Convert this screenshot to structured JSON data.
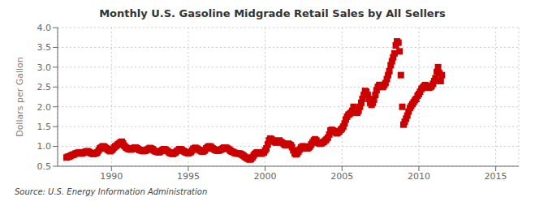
{
  "chart_data": {
    "type": "scatter",
    "title": "Monthly U.S. Gasoline Midgrade Retail Sales by All Sellers",
    "ylabel": "Dollars per Gallon",
    "annotation": "Source: U.S. Energy Information Administration",
    "color": "#cc0000",
    "marker": "square",
    "grid": true,
    "xlim": [
      1986.5,
      2016.5
    ],
    "xticks": [
      1990,
      1995,
      2000,
      2005,
      2010,
      2015
    ],
    "ylim": [
      0.5,
      4.0
    ],
    "yticks": [
      0.5,
      {
        "value": 1.0,
        "label": "1.0"
      },
      1.5,
      {
        "value": 2.0,
        "label": "2.0"
      },
      2.5,
      {
        "value": 3.0,
        "label": "3.0"
      },
      3.5,
      {
        "value": 4.0,
        "label": "4.0"
      }
    ],
    "x": [
      1987.08,
      1987.17,
      1987.25,
      1987.33,
      1987.42,
      1987.5,
      1987.58,
      1987.67,
      1987.75,
      1987.83,
      1987.92,
      1988.0,
      1988.08,
      1988.17,
      1988.25,
      1988.33,
      1988.42,
      1988.5,
      1988.58,
      1988.67,
      1988.75,
      1988.83,
      1988.92,
      1989.0,
      1989.08,
      1989.17,
      1989.25,
      1989.33,
      1989.42,
      1989.5,
      1989.58,
      1989.67,
      1989.75,
      1989.83,
      1989.92,
      1990.0,
      1990.08,
      1990.17,
      1990.25,
      1990.33,
      1990.42,
      1990.5,
      1990.58,
      1990.67,
      1990.75,
      1990.83,
      1990.92,
      1991.0,
      1991.08,
      1991.17,
      1991.25,
      1991.33,
      1991.42,
      1991.5,
      1991.58,
      1991.67,
      1991.75,
      1991.83,
      1991.92,
      1992.0,
      1992.08,
      1992.17,
      1992.25,
      1992.33,
      1992.42,
      1992.5,
      1992.58,
      1992.67,
      1992.75,
      1992.83,
      1992.92,
      1993.0,
      1993.08,
      1993.17,
      1993.25,
      1993.33,
      1993.42,
      1993.5,
      1993.58,
      1993.67,
      1993.75,
      1993.83,
      1993.92,
      1994.0,
      1994.08,
      1994.17,
      1994.25,
      1994.33,
      1994.42,
      1994.5,
      1994.58,
      1994.67,
      1994.75,
      1994.83,
      1994.92,
      1995.0,
      1995.08,
      1995.17,
      1995.25,
      1995.33,
      1995.42,
      1995.5,
      1995.58,
      1995.67,
      1995.75,
      1995.83,
      1995.92,
      1996.0,
      1996.08,
      1996.17,
      1996.25,
      1996.33,
      1996.42,
      1996.5,
      1996.58,
      1996.67,
      1996.75,
      1996.83,
      1996.92,
      1997.0,
      1997.08,
      1997.17,
      1997.25,
      1997.33,
      1997.42,
      1997.5,
      1997.58,
      1997.67,
      1997.75,
      1997.83,
      1997.92,
      1998.0,
      1998.08,
      1998.17,
      1998.25,
      1998.33,
      1998.42,
      1998.5,
      1998.58,
      1998.67,
      1998.75,
      1998.83,
      1998.92,
      1999.0,
      1999.08,
      1999.17,
      1999.25,
      1999.33,
      1999.42,
      1999.5,
      1999.58,
      1999.67,
      1999.75,
      1999.83,
      1999.92,
      2000.0,
      2000.08,
      2000.17,
      2000.25,
      2000.33,
      2000.42,
      2000.5,
      2000.58,
      2000.67,
      2000.75,
      2000.83,
      2000.92,
      2001.0,
      2001.08,
      2001.17,
      2001.25,
      2001.33,
      2001.42,
      2001.5,
      2001.58,
      2001.67,
      2001.75,
      2001.83,
      2001.92,
      2002.0,
      2002.08,
      2002.17,
      2002.25,
      2002.33,
      2002.42,
      2002.5,
      2002.58,
      2002.67,
      2002.75,
      2002.83,
      2002.92,
      2003.0,
      2003.08,
      2003.17,
      2003.25,
      2003.33,
      2003.42,
      2003.5,
      2003.58,
      2003.67,
      2003.75,
      2003.83,
      2003.92,
      2004.0,
      2004.08,
      2004.17,
      2004.25,
      2004.33,
      2004.42,
      2004.5,
      2004.58,
      2004.67,
      2004.75,
      2004.83,
      2004.92,
      2005.0,
      2005.08,
      2005.17,
      2005.25,
      2005.33,
      2005.42,
      2005.5,
      2005.58,
      2005.67,
      2005.75,
      2005.83,
      2005.92,
      2006.0,
      2006.08,
      2006.17,
      2006.25,
      2006.33,
      2006.42,
      2006.5,
      2006.58,
      2006.67,
      2006.75,
      2006.83,
      2006.92,
      2007.0,
      2007.08,
      2007.17,
      2007.25,
      2007.33,
      2007.42,
      2007.5,
      2007.58,
      2007.67,
      2007.75,
      2007.83,
      2007.92,
      2008.0,
      2008.08,
      2008.17,
      2008.25,
      2008.33,
      2008.42,
      2008.5,
      2008.58,
      2008.67,
      2008.75,
      2008.83,
      2008.92,
      2009.0,
      2009.08,
      2009.17,
      2009.25,
      2009.33,
      2009.42,
      2009.5,
      2009.58,
      2009.67,
      2009.75,
      2009.83,
      2009.92,
      2010.0,
      2010.08,
      2010.17,
      2010.25,
      2010.33,
      2010.42,
      2010.5,
      2010.58,
      2010.67,
      2010.75,
      2010.83,
      2010.92,
      2011.0,
      2011.08,
      2011.17,
      2011.25,
      2011.33,
      2011.42,
      2011.5
    ],
    "values": [
      0.72,
      0.74,
      0.74,
      0.76,
      0.78,
      0.79,
      0.8,
      0.82,
      0.83,
      0.84,
      0.85,
      0.83,
      0.82,
      0.84,
      0.85,
      0.87,
      0.88,
      0.87,
      0.85,
      0.83,
      0.82,
      0.81,
      0.82,
      0.83,
      0.85,
      0.9,
      0.95,
      0.97,
      1.0,
      1.0,
      0.98,
      0.95,
      0.92,
      0.9,
      0.88,
      0.9,
      0.93,
      0.97,
      1.0,
      1.02,
      1.05,
      1.07,
      1.1,
      1.12,
      1.08,
      1.02,
      0.98,
      0.96,
      0.94,
      0.93,
      0.92,
      0.93,
      0.95,
      0.97,
      0.97,
      0.95,
      0.93,
      0.91,
      0.9,
      0.89,
      0.88,
      0.89,
      0.9,
      0.92,
      0.94,
      0.96,
      0.95,
      0.93,
      0.9,
      0.88,
      0.87,
      0.86,
      0.85,
      0.87,
      0.89,
      0.91,
      0.93,
      0.92,
      0.9,
      0.88,
      0.85,
      0.83,
      0.82,
      0.81,
      0.83,
      0.85,
      0.88,
      0.9,
      0.93,
      0.93,
      0.91,
      0.89,
      0.87,
      0.85,
      0.84,
      0.83,
      0.84,
      0.86,
      0.9,
      0.94,
      0.96,
      0.96,
      0.94,
      0.92,
      0.9,
      0.88,
      0.87,
      0.88,
      0.9,
      0.95,
      0.98,
      1.0,
      1.0,
      0.98,
      0.95,
      0.93,
      0.91,
      0.9,
      0.89,
      0.9,
      0.91,
      0.93,
      0.95,
      0.97,
      0.97,
      0.96,
      0.94,
      0.92,
      0.89,
      0.87,
      0.86,
      0.84,
      0.83,
      0.82,
      0.82,
      0.82,
      0.81,
      0.79,
      0.77,
      0.74,
      0.72,
      0.7,
      0.68,
      0.67,
      0.68,
      0.72,
      0.77,
      0.81,
      0.84,
      0.85,
      0.83,
      0.82,
      0.82,
      0.83,
      0.85,
      0.9,
      0.95,
      1.05,
      1.15,
      1.2,
      1.18,
      1.15,
      1.12,
      1.1,
      1.1,
      1.12,
      1.15,
      1.12,
      1.1,
      1.08,
      1.05,
      1.03,
      1.05,
      1.07,
      1.05,
      1.03,
      0.98,
      0.9,
      0.83,
      0.8,
      0.82,
      0.87,
      0.92,
      0.97,
      1.0,
      1.0,
      0.97,
      0.95,
      0.95,
      0.97,
      1.0,
      1.05,
      1.1,
      1.15,
      1.18,
      1.15,
      1.1,
      1.08,
      1.07,
      1.08,
      1.1,
      1.12,
      1.15,
      1.18,
      1.22,
      1.3,
      1.4,
      1.42,
      1.4,
      1.38,
      1.35,
      1.33,
      1.35,
      1.38,
      1.42,
      1.45,
      1.5,
      1.58,
      1.68,
      1.75,
      1.8,
      1.82,
      1.85,
      1.9,
      2.0,
      1.95,
      1.88,
      1.85,
      1.9,
      2.0,
      2.1,
      2.2,
      2.3,
      2.4,
      2.38,
      2.3,
      2.2,
      2.1,
      2.05,
      2.1,
      2.18,
      2.3,
      2.42,
      2.5,
      2.55,
      2.55,
      2.52,
      2.5,
      2.55,
      2.6,
      2.7,
      2.8,
      2.9,
      3.05,
      3.15,
      3.25,
      3.35,
      3.55,
      3.65,
      3.62,
      3.4,
      2.8,
      2.0,
      1.55,
      1.62,
      1.7,
      1.78,
      1.88,
      1.97,
      2.02,
      2.07,
      2.12,
      2.17,
      2.2,
      2.28,
      2.32,
      2.38,
      2.45,
      2.48,
      2.52,
      2.55,
      2.52,
      2.5,
      2.48,
      2.5,
      2.52,
      2.58,
      2.65,
      2.72,
      2.88,
      3.0,
      2.85,
      2.65,
      2.8
    ]
  }
}
